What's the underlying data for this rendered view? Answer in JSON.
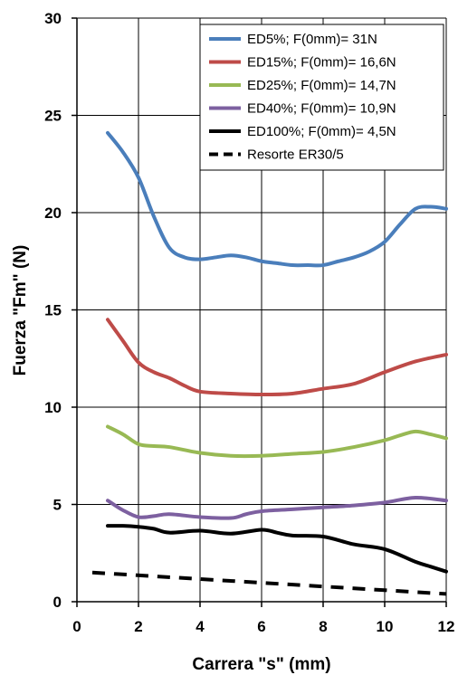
{
  "chart_data": {
    "type": "line",
    "xlabel": "Carrera \"s\" (mm)",
    "ylabel": "Fuerza \"Fm\" (N)",
    "xlim": [
      0,
      12
    ],
    "ylim": [
      0,
      30
    ],
    "xticks": [
      "0",
      "2",
      "4",
      "6",
      "8",
      "10",
      "12"
    ],
    "yticks": [
      "0",
      "5",
      "10",
      "15",
      "20",
      "25",
      "30"
    ],
    "grid": true,
    "legend_position": "top-right",
    "series": [
      {
        "name": "ED5%; F(0mm)= 31N",
        "color": "#4a7ebb",
        "dash": "solid",
        "points": [
          [
            1,
            24.1
          ],
          [
            1.5,
            23.1
          ],
          [
            2,
            21.8
          ],
          [
            2.5,
            19.8
          ],
          [
            3,
            18.2
          ],
          [
            3.5,
            17.7
          ],
          [
            4,
            17.6
          ],
          [
            4.5,
            17.7
          ],
          [
            5,
            17.8
          ],
          [
            5.5,
            17.7
          ],
          [
            6,
            17.5
          ],
          [
            6.5,
            17.4
          ],
          [
            7,
            17.3
          ],
          [
            7.5,
            17.3
          ],
          [
            8,
            17.3
          ],
          [
            8.5,
            17.5
          ],
          [
            9,
            17.7
          ],
          [
            9.5,
            18
          ],
          [
            10,
            18.5
          ],
          [
            10.5,
            19.4
          ],
          [
            11,
            20.2
          ],
          [
            11.5,
            20.3
          ],
          [
            12,
            20.2
          ]
        ]
      },
      {
        "name": "ED15%; F(0mm)= 16,6N",
        "color": "#be4b48",
        "dash": "solid",
        "points": [
          [
            1,
            14.5
          ],
          [
            1.5,
            13.4
          ],
          [
            2,
            12.3
          ],
          [
            2.5,
            11.8
          ],
          [
            3,
            11.5
          ],
          [
            3.5,
            11.1
          ],
          [
            4,
            10.8
          ],
          [
            5,
            10.7
          ],
          [
            6,
            10.65
          ],
          [
            7,
            10.7
          ],
          [
            8,
            10.95
          ],
          [
            9,
            11.2
          ],
          [
            10,
            11.8
          ],
          [
            11,
            12.35
          ],
          [
            12,
            12.7
          ]
        ]
      },
      {
        "name": "ED25%; F(0mm)= 14,7N",
        "color": "#98b954",
        "dash": "solid",
        "points": [
          [
            1,
            9
          ],
          [
            1.5,
            8.6
          ],
          [
            2,
            8.1
          ],
          [
            2.5,
            8
          ],
          [
            3,
            7.95
          ],
          [
            4,
            7.65
          ],
          [
            5,
            7.5
          ],
          [
            6,
            7.5
          ],
          [
            7,
            7.6
          ],
          [
            8,
            7.7
          ],
          [
            9,
            7.95
          ],
          [
            10,
            8.3
          ],
          [
            10.5,
            8.55
          ],
          [
            11,
            8.75
          ],
          [
            11.5,
            8.6
          ],
          [
            12,
            8.4
          ]
        ]
      },
      {
        "name": "ED40%; F(0mm)= 10,9N",
        "color": "#7d60a0",
        "dash": "solid",
        "points": [
          [
            1,
            5.2
          ],
          [
            1.5,
            4.7
          ],
          [
            2,
            4.35
          ],
          [
            2.5,
            4.4
          ],
          [
            3,
            4.5
          ],
          [
            4,
            4.35
          ],
          [
            5,
            4.3
          ],
          [
            5.5,
            4.5
          ],
          [
            6,
            4.65
          ],
          [
            7,
            4.75
          ],
          [
            8,
            4.85
          ],
          [
            9,
            4.95
          ],
          [
            10,
            5.1
          ],
          [
            11,
            5.35
          ],
          [
            12,
            5.2
          ]
        ]
      },
      {
        "name": "ED100%; F(0mm)= 4,5N",
        "color": "#000000",
        "dash": "solid",
        "points": [
          [
            1,
            3.9
          ],
          [
            1.5,
            3.9
          ],
          [
            2,
            3.85
          ],
          [
            2.5,
            3.75
          ],
          [
            3,
            3.55
          ],
          [
            4,
            3.65
          ],
          [
            5,
            3.5
          ],
          [
            6,
            3.7
          ],
          [
            6.5,
            3.55
          ],
          [
            7,
            3.4
          ],
          [
            8,
            3.35
          ],
          [
            9,
            2.95
          ],
          [
            10,
            2.7
          ],
          [
            11,
            2.05
          ],
          [
            11.5,
            1.8
          ],
          [
            12,
            1.55
          ]
        ]
      },
      {
        "name": "Resorte ER30/5",
        "color": "#000000",
        "dash": "dashed",
        "points": [
          [
            0.5,
            1.5
          ],
          [
            12,
            0.4
          ]
        ]
      }
    ]
  }
}
